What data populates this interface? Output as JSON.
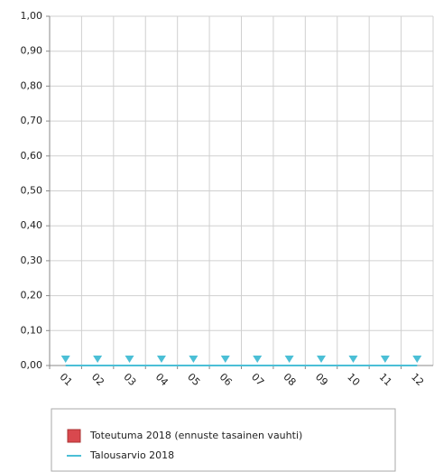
{
  "chart_data": {
    "type": "line",
    "categories": [
      "01",
      "02",
      "03",
      "04",
      "05",
      "06",
      "07",
      "08",
      "09",
      "10",
      "11",
      "12"
    ],
    "series": [
      {
        "name": "Toteutuma 2018 (ennuste tasainen vauhti)",
        "kind": "bar",
        "color": "#d9484e",
        "values": [
          0,
          0,
          0,
          0,
          0,
          0,
          0,
          0,
          0,
          0,
          0,
          0
        ]
      },
      {
        "name": "Talousarvio 2018",
        "kind": "line",
        "color": "#4bbfd6",
        "values": [
          0,
          0,
          0,
          0,
          0,
          0,
          0,
          0,
          0,
          0,
          0,
          0
        ]
      }
    ],
    "ylim": [
      0,
      1
    ],
    "yticks": [
      {
        "value": 0,
        "label": "0,00"
      },
      {
        "value": 0.1,
        "label": "0,10"
      },
      {
        "value": 0.2,
        "label": "0,20"
      },
      {
        "value": 0.3,
        "label": "0,30"
      },
      {
        "value": 0.4,
        "label": "0,40"
      },
      {
        "value": 0.5,
        "label": "0,50"
      },
      {
        "value": 0.6,
        "label": "0,60"
      },
      {
        "value": 0.7,
        "label": "0,70"
      },
      {
        "value": 0.8,
        "label": "0,80"
      },
      {
        "value": 0.9,
        "label": "0,90"
      },
      {
        "value": 1,
        "label": "1,00"
      }
    ],
    "grid": true,
    "legend": "bottom"
  }
}
